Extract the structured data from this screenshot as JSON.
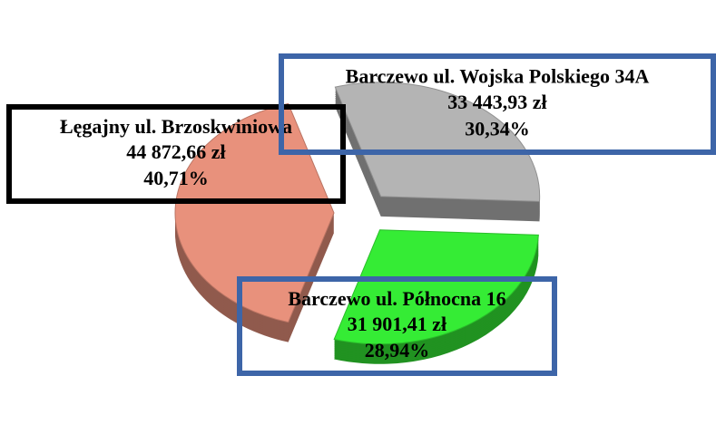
{
  "chart_data": {
    "type": "pie",
    "labels": [
      "Łęgajny ul. Brzoskwiniowa",
      "Barczewo ul. Wojska Polskiego 34A",
      "Barczewo ul. Północna 16"
    ],
    "values": [
      44872.66,
      33443.93,
      31901.41
    ],
    "value_labels": [
      "44 872,66 zł",
      "33 443,93 zł",
      "31 901,41 zł"
    ],
    "percentages": [
      40.71,
      30.34,
      28.94
    ],
    "percentage_labels": [
      "40,71%",
      "30,34%",
      "28,94%"
    ],
    "colors": [
      "#e8917c",
      "#b4b4b4",
      "#35ec35"
    ],
    "label_border_colors": [
      "#000000",
      "#3d65a8",
      "#3d65a8"
    ]
  }
}
